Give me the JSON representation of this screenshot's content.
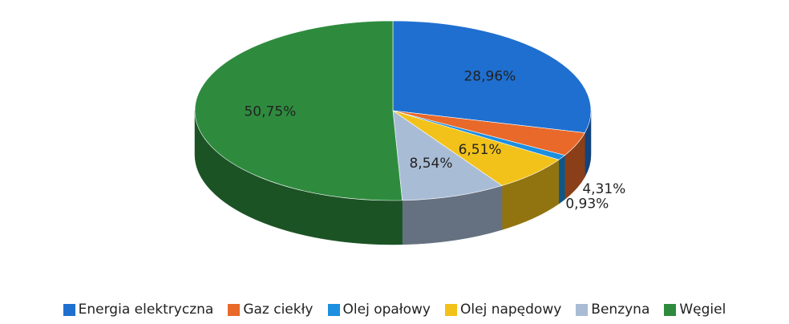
{
  "chart_data": {
    "type": "pie",
    "categories": [
      "Energia elektryczna",
      "Gaz ciekły",
      "Olej opałowy",
      "Olej napędowy",
      "Benzyna",
      "Węgiel"
    ],
    "values": [
      28.96,
      4.31,
      0.93,
      6.51,
      8.54,
      50.75
    ],
    "value_labels": [
      "28,96%",
      "4,31%",
      "0,93%",
      "6,51%",
      "8,54%",
      "50,75%"
    ],
    "colors": [
      "#1f6fd0",
      "#e8692a",
      "#1b8fe0",
      "#f2c21a",
      "#a9bcd6",
      "#2e8b3e"
    ],
    "legend": "bottom"
  }
}
